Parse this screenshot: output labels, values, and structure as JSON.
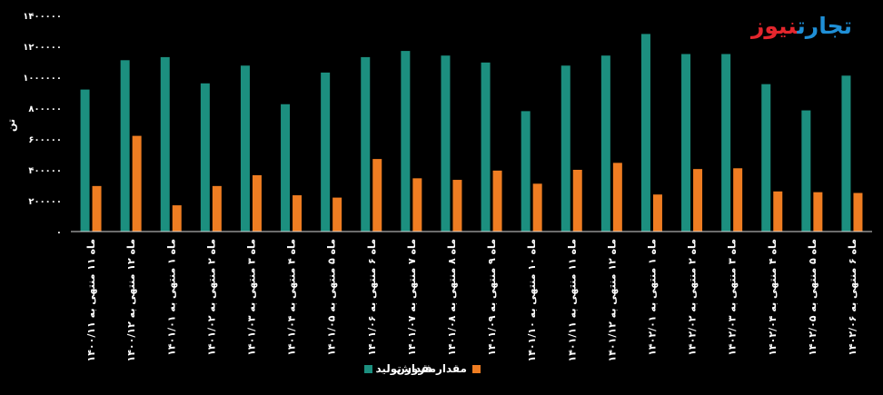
{
  "brand": {
    "part1": "تجارت",
    "part2": "نیوز",
    "color1": "#1f8fd6",
    "color2": "#e4262d"
  },
  "chart_data": {
    "type": "bar",
    "ylabel": "تن",
    "ylim": [
      0,
      1400000
    ],
    "yticks": [
      0,
      200000,
      400000,
      600000,
      800000,
      1000000,
      1200000,
      1400000
    ],
    "ytick_labels": [
      "۰",
      "۲۰۰۰۰۰",
      "۴۰۰۰۰۰",
      "۶۰۰۰۰۰",
      "۸۰۰۰۰۰",
      "۱۰۰۰۰۰۰",
      "۱۲۰۰۰۰۰",
      "۱۴۰۰۰۰۰"
    ],
    "categories": [
      "ماه ۱۱ منتهی به ۱۴۰۰/۱۱",
      "ماه ۱۲ منتهی به ۱۴۰۰/۱۲",
      "ماه ۱ منتهی به ۱۴۰۱/۰۱",
      "ماه ۲ منتهی به ۱۴۰۱/۰۲",
      "ماه ۳ منتهی به ۱۴۰۱/۰۳",
      "ماه ۴ منتهی به ۱۴۰۱/۰۴",
      "ماه ۵ منتهی به ۱۴۰۱/۰۵",
      "ماه ۶ منتهی به ۱۴۰۱/۰۶",
      "ماه ۷ منتهی به ۱۴۰۱/۰۷",
      "ماه ۸ منتهی به ۱۴۰۱/۰۸",
      "ماه ۹ منتهی به ۱۴۰۱/۰۹",
      "ماه ۱۰ منتهی به ۱۴۰۱/۱۰",
      "ماه ۱۱ منتهی به ۱۴۰۱/۱۱",
      "ماه ۱۲ منتهی به ۱۴۰۱/۱۲",
      "ماه ۱ منتهی به ۱۴۰۲/۰۱",
      "ماه ۲ منتهی به ۱۴۰۲/۰۲",
      "ماه ۳ منتهی به ۱۴۰۲/۰۳",
      "ماه ۴ منتهی به ۱۴۰۲/۰۴",
      "ماه ۵ منتهی به ۱۴۰۲/۰۵",
      "ماه ۶ منتهی به ۱۴۰۲/۰۶"
    ],
    "series": [
      {
        "name": "مقدار تولید",
        "color": "#1c8f7f",
        "values": [
          920000,
          1110000,
          1130000,
          960000,
          1075000,
          825000,
          1030000,
          1130000,
          1170000,
          1140000,
          1095000,
          780000,
          1075000,
          1140000,
          1280000,
          1150000,
          1150000,
          955000,
          785000,
          1010000
        ]
      },
      {
        "name": "مقدار فروش",
        "color": "#ef7d22",
        "values": [
          295000,
          620000,
          170000,
          295000,
          365000,
          235000,
          220000,
          470000,
          345000,
          335000,
          395000,
          310000,
          400000,
          445000,
          240000,
          405000,
          410000,
          260000,
          255000,
          250000
        ]
      }
    ],
    "legend_position": "bottom-center",
    "grid": false
  }
}
